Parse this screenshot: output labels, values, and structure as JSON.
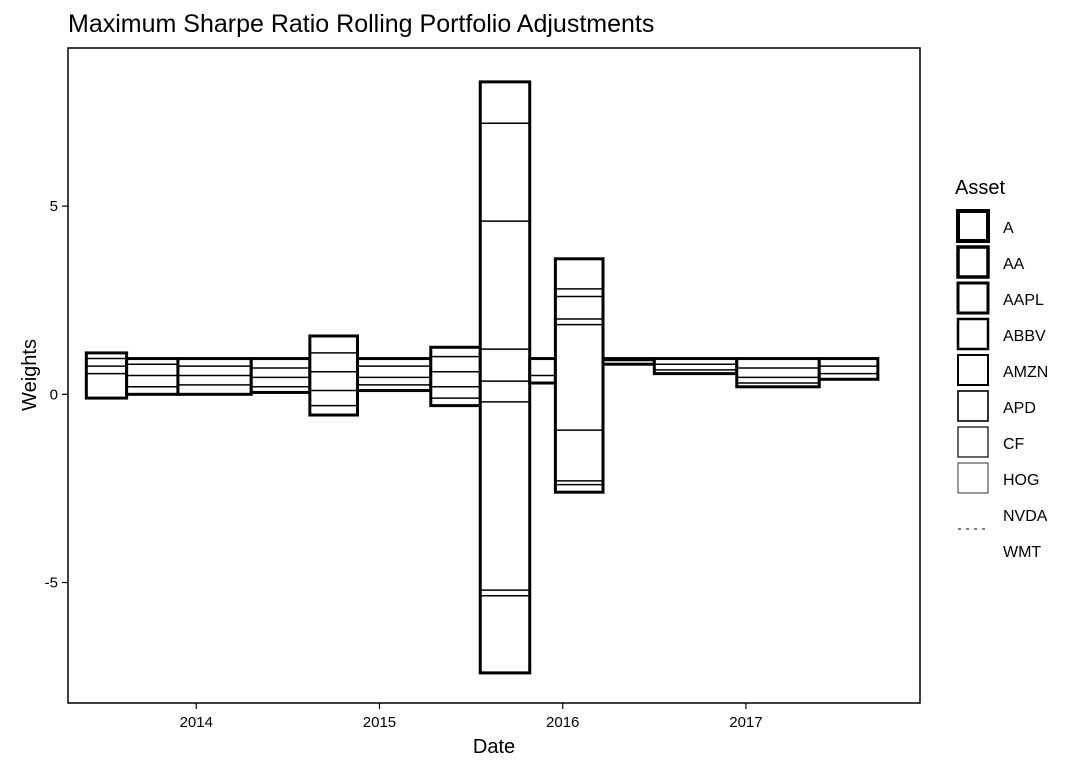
{
  "chart_data": {
    "type": "area",
    "stacked": true,
    "title": "Maximum Sharpe Ratio Rolling Portfolio Adjustments",
    "xlabel": "Date",
    "ylabel": "Weights",
    "xlim": [
      2013.3,
      2017.95
    ],
    "ylim": [
      -8.2,
      9.2
    ],
    "x_ticks": [
      2014,
      2015,
      2016,
      2017
    ],
    "x_tick_labels": [
      "2014",
      "2015",
      "2016",
      "2017"
    ],
    "y_ticks": [
      -5,
      0,
      5
    ],
    "y_tick_labels": [
      "-5",
      "0",
      "5"
    ],
    "grid": false,
    "legend_position": "right",
    "legend_title": "Asset",
    "colors": {
      "stroke": "#000000",
      "fill": "#ffffff",
      "border": "#000000"
    },
    "series": [
      {
        "name": "A"
      },
      {
        "name": "AA"
      },
      {
        "name": "AAPL"
      },
      {
        "name": "ABBV"
      },
      {
        "name": "AMZN"
      },
      {
        "name": "APD"
      },
      {
        "name": "CF"
      },
      {
        "name": "HOG"
      },
      {
        "name": "NVDA"
      },
      {
        "name": "WMT"
      }
    ],
    "segments": [
      {
        "x0": 2013.4,
        "x1": 2013.62,
        "top": 1.1,
        "bottom": -0.1,
        "levels": [
          0.95,
          0.75,
          0.55
        ]
      },
      {
        "x0": 2013.62,
        "x1": 2013.9,
        "top": 0.95,
        "bottom": 0.0,
        "levels": [
          0.8,
          0.5,
          0.2
        ]
      },
      {
        "x0": 2013.9,
        "x1": 2014.3,
        "top": 0.95,
        "bottom": 0.0,
        "levels": [
          0.75,
          0.5,
          0.25
        ]
      },
      {
        "x0": 2014.3,
        "x1": 2014.62,
        "top": 0.95,
        "bottom": 0.05,
        "levels": [
          0.7,
          0.45,
          0.2
        ]
      },
      {
        "x0": 2014.62,
        "x1": 2014.88,
        "top": 1.55,
        "bottom": -0.55,
        "levels": [
          1.1,
          0.6,
          0.1,
          -0.3
        ]
      },
      {
        "x0": 2014.88,
        "x1": 2015.28,
        "top": 0.95,
        "bottom": 0.1,
        "levels": [
          0.75,
          0.45,
          0.25
        ]
      },
      {
        "x0": 2015.28,
        "x1": 2015.55,
        "top": 1.25,
        "bottom": -0.3,
        "levels": [
          1.0,
          0.6,
          0.2,
          -0.1
        ]
      },
      {
        "x0": 2015.55,
        "x1": 2015.82,
        "top": 8.3,
        "bottom": -7.4,
        "levels": [
          7.2,
          4.6,
          1.2,
          0.35,
          -0.2,
          -5.2,
          -5.35
        ]
      },
      {
        "x0": 2015.82,
        "x1": 2015.96,
        "top": 0.95,
        "bottom": 0.3,
        "levels": [
          0.5
        ]
      },
      {
        "x0": 2015.96,
        "x1": 2016.22,
        "top": 3.6,
        "bottom": -2.6,
        "levels": [
          2.8,
          2.6,
          2.0,
          1.85,
          -0.95,
          -2.3,
          -2.4
        ]
      },
      {
        "x0": 2016.22,
        "x1": 2016.5,
        "top": 0.95,
        "bottom": 0.8,
        "levels": [
          0.9
        ]
      },
      {
        "x0": 2016.5,
        "x1": 2016.95,
        "top": 0.95,
        "bottom": 0.55,
        "levels": [
          0.8,
          0.65
        ]
      },
      {
        "x0": 2016.95,
        "x1": 2017.4,
        "top": 0.95,
        "bottom": 0.2,
        "levels": [
          0.7,
          0.45,
          0.3
        ]
      },
      {
        "x0": 2017.4,
        "x1": 2017.72,
        "top": 0.95,
        "bottom": 0.4,
        "levels": [
          0.75,
          0.55
        ]
      }
    ]
  }
}
